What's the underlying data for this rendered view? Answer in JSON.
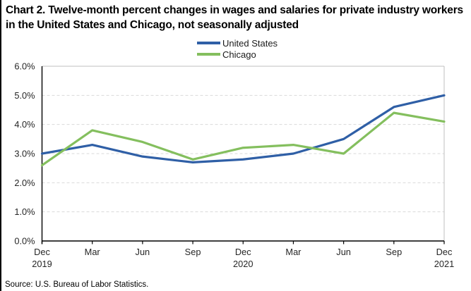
{
  "header": {
    "title": "Chart 2. Twelve-month percent changes in wages and salaries for private industry workers in the United States and Chicago, not seasonally adjusted"
  },
  "footer": {
    "source": "Source: U.S. Bureau of Labor Statistics."
  },
  "chart_data": {
    "type": "line",
    "title": "Chart 2. Twelve-month percent changes in wages and salaries for private industry workers in the United States and Chicago, not seasonally adjusted",
    "categories": [
      {
        "label": "Dec",
        "year": "2019"
      },
      {
        "label": "Mar"
      },
      {
        "label": "Jun"
      },
      {
        "label": "Sep"
      },
      {
        "label": "Dec",
        "year": "2020"
      },
      {
        "label": "Mar"
      },
      {
        "label": "Jun"
      },
      {
        "label": "Sep"
      },
      {
        "label": "Dec",
        "year": "2021"
      }
    ],
    "series": [
      {
        "name": "United States",
        "color": "#2F5FA6",
        "values": [
          3.0,
          3.3,
          2.9,
          2.7,
          2.8,
          3.0,
          3.5,
          4.6,
          5.0
        ]
      },
      {
        "name": "Chicago",
        "color": "#84BF5E",
        "values": [
          2.6,
          3.8,
          3.4,
          2.8,
          3.2,
          3.3,
          3.0,
          4.4,
          4.1
        ]
      }
    ],
    "ylim": [
      0,
      6
    ],
    "ytick_step": 1,
    "ytick_labels": [
      "0.0%",
      "1.0%",
      "2.0%",
      "3.0%",
      "4.0%",
      "5.0%",
      "6.0%"
    ],
    "xlabel": "",
    "ylabel": "",
    "grid": "horizontal-dashed",
    "legend_position": "top-center",
    "colors": {
      "gridline": "#D9D9D9",
      "plot_border": "#BFBFBF",
      "axis": "#000000",
      "tick_text": "#262626"
    }
  }
}
